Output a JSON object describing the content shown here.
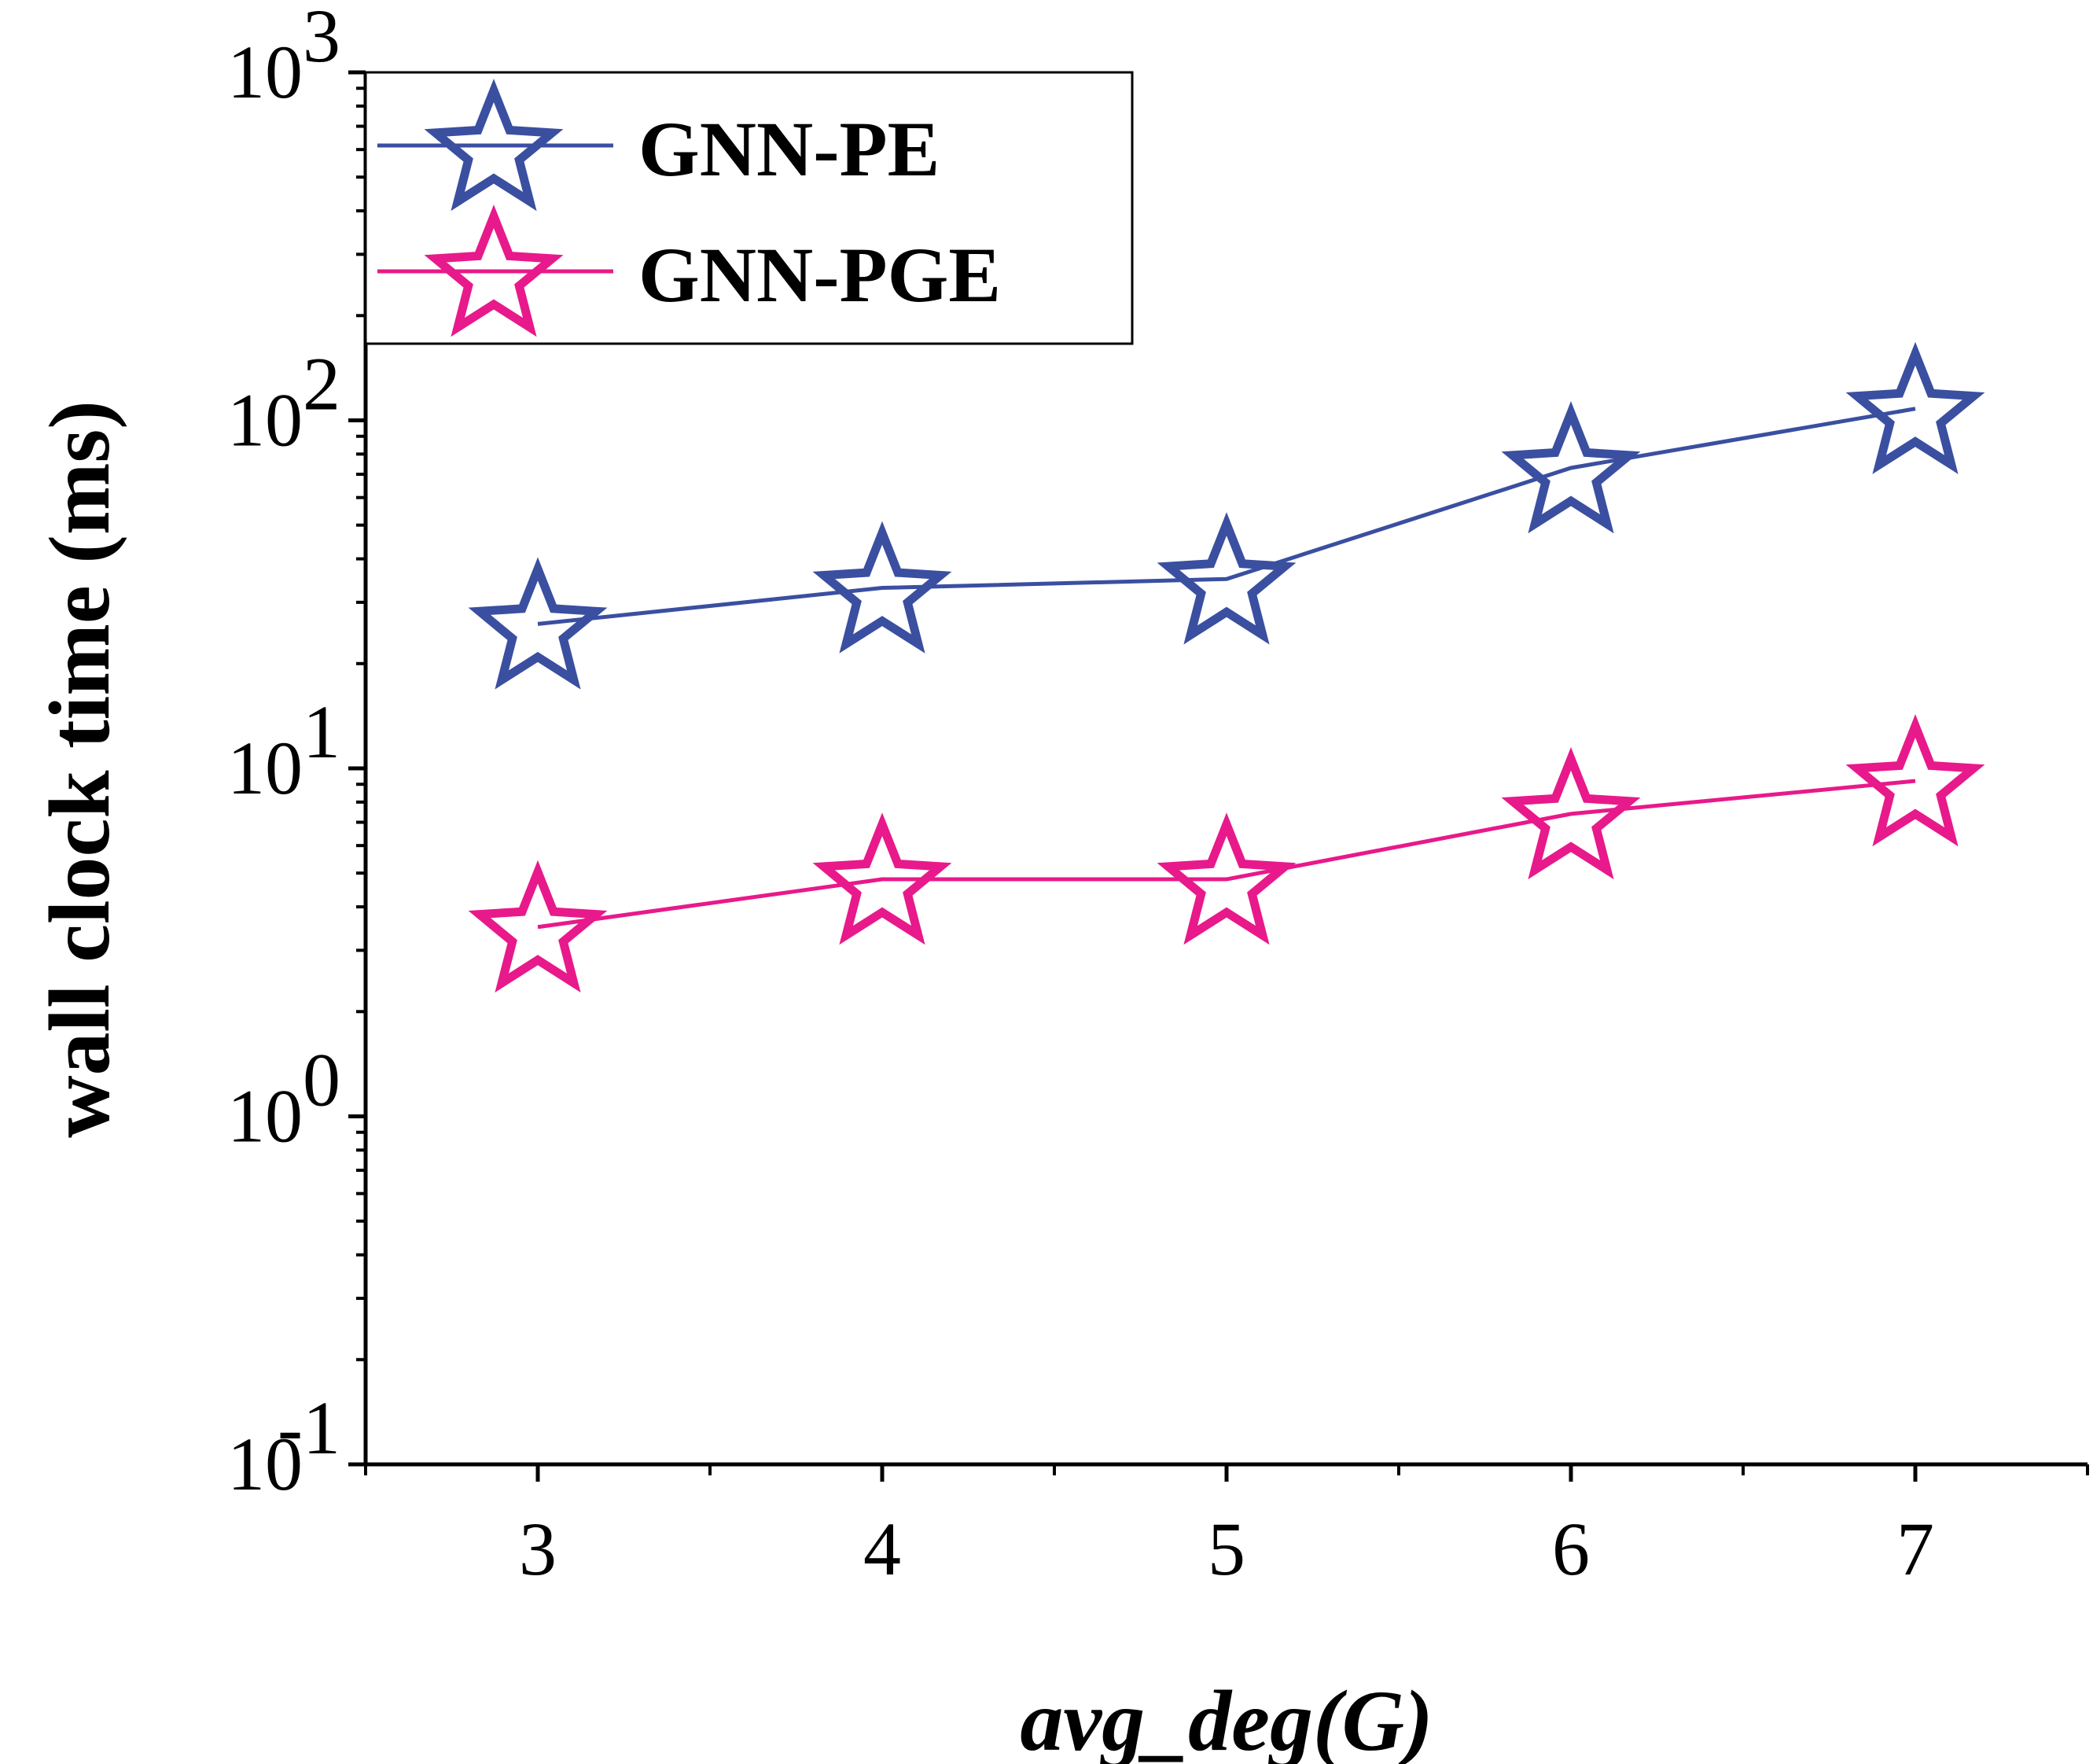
{
  "chart_data": {
    "type": "line",
    "xlabel": "avg_deg(G)",
    "ylabel": "wall clock time (ms)",
    "x_scale": "linear",
    "y_scale": "log",
    "xlim": [
      2.5,
      7.5
    ],
    "ylim": [
      0.1,
      1000
    ],
    "x": [
      3,
      4,
      5,
      6,
      7
    ],
    "x_tick_labels": [
      "3",
      "4",
      "5",
      "6",
      "7"
    ],
    "y_ticks": [
      {
        "value": 0.1,
        "base": "10",
        "exp": "-1"
      },
      {
        "value": 1,
        "base": "10",
        "exp": "0"
      },
      {
        "value": 10,
        "base": "10",
        "exp": "1"
      },
      {
        "value": 100,
        "base": "10",
        "exp": "2"
      },
      {
        "value": 1000,
        "base": "10",
        "exp": "3"
      }
    ],
    "series": [
      {
        "name": "GNN-PE",
        "color": "#3a4fa0",
        "marker": "open-star",
        "values": [
          26,
          33,
          35,
          73,
          108
        ]
      },
      {
        "name": "GNN-PGE",
        "color": "#e8198b",
        "marker": "open-star",
        "values": [
          3.5,
          4.8,
          4.8,
          7.4,
          9.2
        ]
      }
    ],
    "legend_position": "top-left",
    "grid": false
  }
}
